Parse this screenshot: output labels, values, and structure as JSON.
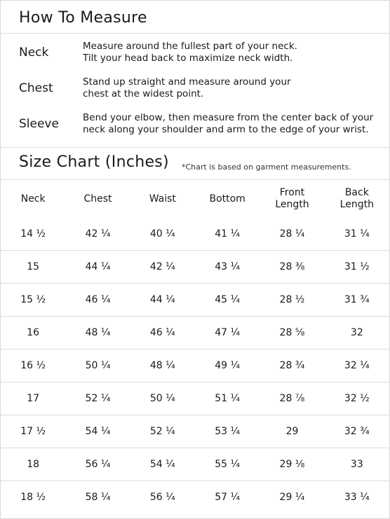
{
  "how_to_measure": {
    "title": "How To Measure",
    "items": [
      {
        "label": "Neck",
        "desc": [
          "Measure around the fullest part of your neck.",
          "Tilt your head back to maximize neck width."
        ]
      },
      {
        "label": "Chest",
        "desc": [
          "Stand up straight and measure around your",
          "chest at the widest point."
        ]
      },
      {
        "label": "Sleeve",
        "desc": [
          "Bend your elbow, then measure from the center back of your",
          "neck along your shoulder and arm to the edge of your wrist."
        ]
      }
    ]
  },
  "size_chart": {
    "title": "Size Chart (Inches)",
    "note": "*Chart is based on garment measurements.",
    "columns": [
      [
        "Neck"
      ],
      [
        "Chest"
      ],
      [
        "Waist"
      ],
      [
        "Bottom"
      ],
      [
        "Front",
        "Length"
      ],
      [
        "Back",
        "Length"
      ]
    ],
    "rows": [
      [
        "14 ½",
        "42 ¼",
        "40 ¼",
        "41 ¼",
        "28 ¼",
        "31 ¼"
      ],
      [
        "15",
        "44 ¼",
        "42 ¼",
        "43 ¼",
        "28 ⅜",
        "31 ½"
      ],
      [
        "15 ½",
        "46 ¼",
        "44 ¼",
        "45 ¼",
        "28 ½",
        "31 ¾"
      ],
      [
        "16",
        "48 ¼",
        "46 ¼",
        "47 ¼",
        "28 ⅝",
        "32"
      ],
      [
        "16 ½",
        "50 ¼",
        "48 ¼",
        "49 ¼",
        "28 ¾",
        "32 ¼"
      ],
      [
        "17",
        "52 ¼",
        "50 ¼",
        "51 ¼",
        "28 ⅞",
        "32 ½"
      ],
      [
        "17 ½",
        "54 ¼",
        "52 ¼",
        "53 ¼",
        "29",
        "32 ¾"
      ],
      [
        "18",
        "56 ¼",
        "54 ¼",
        "55 ¼",
        "29 ⅛",
        "33"
      ],
      [
        "18 ½",
        "58 ¼",
        "56 ¼",
        "57 ¼",
        "29 ¼",
        "33 ¼"
      ]
    ]
  }
}
